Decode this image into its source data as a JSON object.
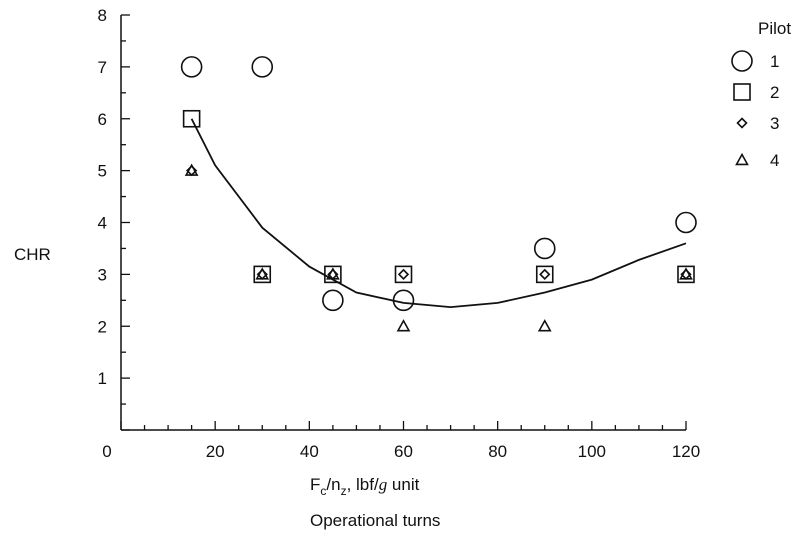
{
  "chart_data": {
    "type": "scatter",
    "title": "",
    "ylabel": "CHR",
    "xlabel_parts": {
      "main": "F",
      "sub1": "c",
      "slash": "/n",
      "sub2": "z",
      "rest": ", lbf/",
      "g": "g",
      "unit": " unit"
    },
    "caption": "Operational turns",
    "xlim": [
      0,
      120
    ],
    "ylim": [
      0,
      8
    ],
    "xticks": [
      0,
      20,
      40,
      60,
      80,
      100,
      120
    ],
    "yticks": [
      1,
      2,
      3,
      4,
      5,
      6,
      7,
      8
    ],
    "legend": {
      "title": "Pilot",
      "placement": "right"
    },
    "series": [
      {
        "name": "1",
        "marker": "circle",
        "points": [
          [
            15,
            7
          ],
          [
            30,
            7
          ],
          [
            45,
            2.5
          ],
          [
            60,
            2.5
          ],
          [
            90,
            3.5
          ],
          [
            120,
            4
          ]
        ]
      },
      {
        "name": "2",
        "marker": "square",
        "points": [
          [
            15,
            6
          ],
          [
            30,
            3
          ],
          [
            45,
            3
          ],
          [
            60,
            3
          ],
          [
            90,
            3
          ],
          [
            120,
            3
          ]
        ]
      },
      {
        "name": "3",
        "marker": "diamond",
        "points": [
          [
            15,
            5
          ],
          [
            30,
            3
          ],
          [
            45,
            3
          ],
          [
            60,
            3
          ],
          [
            90,
            3
          ],
          [
            120,
            3
          ]
        ]
      },
      {
        "name": "4",
        "marker": "triangle",
        "points": [
          [
            15,
            5
          ],
          [
            30,
            3
          ],
          [
            45,
            3
          ],
          [
            60,
            2
          ],
          [
            90,
            2
          ],
          [
            120,
            3
          ]
        ]
      }
    ],
    "fit_curve": {
      "points": [
        [
          15,
          6
        ],
        [
          20,
          5.1
        ],
        [
          30,
          3.9
        ],
        [
          40,
          3.15
        ],
        [
          50,
          2.65
        ],
        [
          60,
          2.45
        ],
        [
          70,
          2.37
        ],
        [
          80,
          2.45
        ],
        [
          90,
          2.65
        ],
        [
          100,
          2.9
        ],
        [
          110,
          3.28
        ],
        [
          120,
          3.6
        ]
      ]
    }
  }
}
